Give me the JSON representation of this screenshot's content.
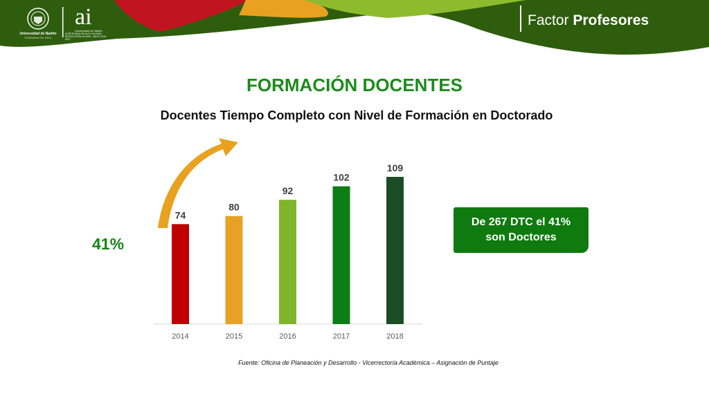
{
  "header": {
    "university_name": "Universidad de Nariño",
    "university_founded": "FUNDADA EN 1904",
    "ai_mark": "ai",
    "ai_university": "Universidad de Nariño",
    "ai_accreditation": "ACREDITADA EN ALTA CALIDAD RESOLUCIÓN No 0000 - MAYO 2010 2017",
    "factor_light": "Factor",
    "factor_bold": "Profesores"
  },
  "title": "FORMACIÓN DOCENTES",
  "subtitle": "Docentes Tiempo Completo con Nivel de Formación en Doctorado",
  "growth_label": "41%",
  "callout": {
    "line1": "De 267 DTC el 41%",
    "line2": "son Doctores"
  },
  "source": "Fuente: Oficina de Planeación y Desarrollo - Vicerrectoría Académica – Asignación de Puntaje",
  "colors": {
    "header_green": "#2e5d0e",
    "title_green": "#1c8a1c",
    "arrow": "#e8a21f",
    "callout_green": "#0f7a10"
  },
  "chart_data": {
    "type": "bar",
    "categories": [
      "2014",
      "2015",
      "2016",
      "2017",
      "2018"
    ],
    "values": [
      74,
      80,
      92,
      102,
      109
    ],
    "bar_colors": [
      "#c00000",
      "#e8a124",
      "#80b52b",
      "#0d7d16",
      "#1b4d24"
    ],
    "ylim": [
      0,
      110
    ],
    "grid": false,
    "xlabel": "",
    "ylabel": ""
  }
}
